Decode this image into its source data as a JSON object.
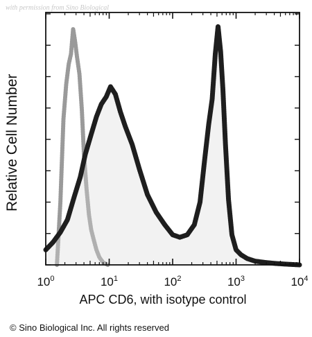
{
  "watermark": "with permission from Sino Biological",
  "copyright": "© Sino Biological Inc. All rights reserved",
  "chart_data": {
    "type": "area",
    "title": "",
    "xlabel": "APC CD6, with isotype control",
    "ylabel": "Relative Cell Number",
    "x_scale": "log",
    "xlim": [
      1,
      10000
    ],
    "ylim": [
      0,
      100
    ],
    "x_ticks": [
      {
        "value": 1,
        "base": "10",
        "exp": "0"
      },
      {
        "value": 10,
        "base": "10",
        "exp": "1"
      },
      {
        "value": 100,
        "base": "10",
        "exp": "2"
      },
      {
        "value": 1000,
        "base": "10",
        "exp": "3"
      },
      {
        "value": 10000,
        "base": "10",
        "exp": "4"
      }
    ],
    "grid": false,
    "legend": "none",
    "series": [
      {
        "role": "isotype-control",
        "style": "dotted-light",
        "color": "#9a9a9a",
        "x": [
          1.5,
          1.7,
          1.9,
          2.1,
          2.3,
          2.5,
          2.7,
          2.9,
          3.1,
          3.4,
          3.7,
          4.0,
          4.4,
          4.8,
          5.2,
          5.7,
          6.3,
          7.0,
          8.0,
          9.5
        ],
        "y": [
          0,
          25,
          58,
          72,
          80,
          84,
          94,
          89,
          83,
          76,
          62,
          44,
          30,
          20,
          14,
          10,
          6,
          3,
          1,
          0
        ]
      },
      {
        "role": "CD6-stained",
        "style": "dark-filled",
        "color": "#1e1e1e",
        "x": [
          1,
          1.3,
          1.7,
          2.2,
          2.8,
          3.5,
          4.2,
          5.2,
          6.3,
          7.5,
          9,
          10.5,
          12.5,
          15,
          18,
          23,
          30,
          40,
          55,
          75,
          100,
          130,
          170,
          220,
          270,
          320,
          370,
          420,
          470,
          520,
          570,
          620,
          680,
          760,
          860,
          1000,
          1200,
          1500,
          2000,
          2800,
          4000,
          6000,
          10000
        ],
        "y": [
          6,
          9,
          13,
          18,
          27,
          35,
          44,
          52,
          59,
          64,
          67,
          71,
          68,
          61,
          55,
          48,
          38,
          28,
          21,
          16,
          12,
          11,
          12,
          16,
          25,
          42,
          56,
          66,
          84,
          95,
          85,
          70,
          48,
          26,
          12,
          6,
          4,
          2.5,
          1.5,
          1,
          0.6,
          0.3,
          0
        ]
      }
    ]
  }
}
